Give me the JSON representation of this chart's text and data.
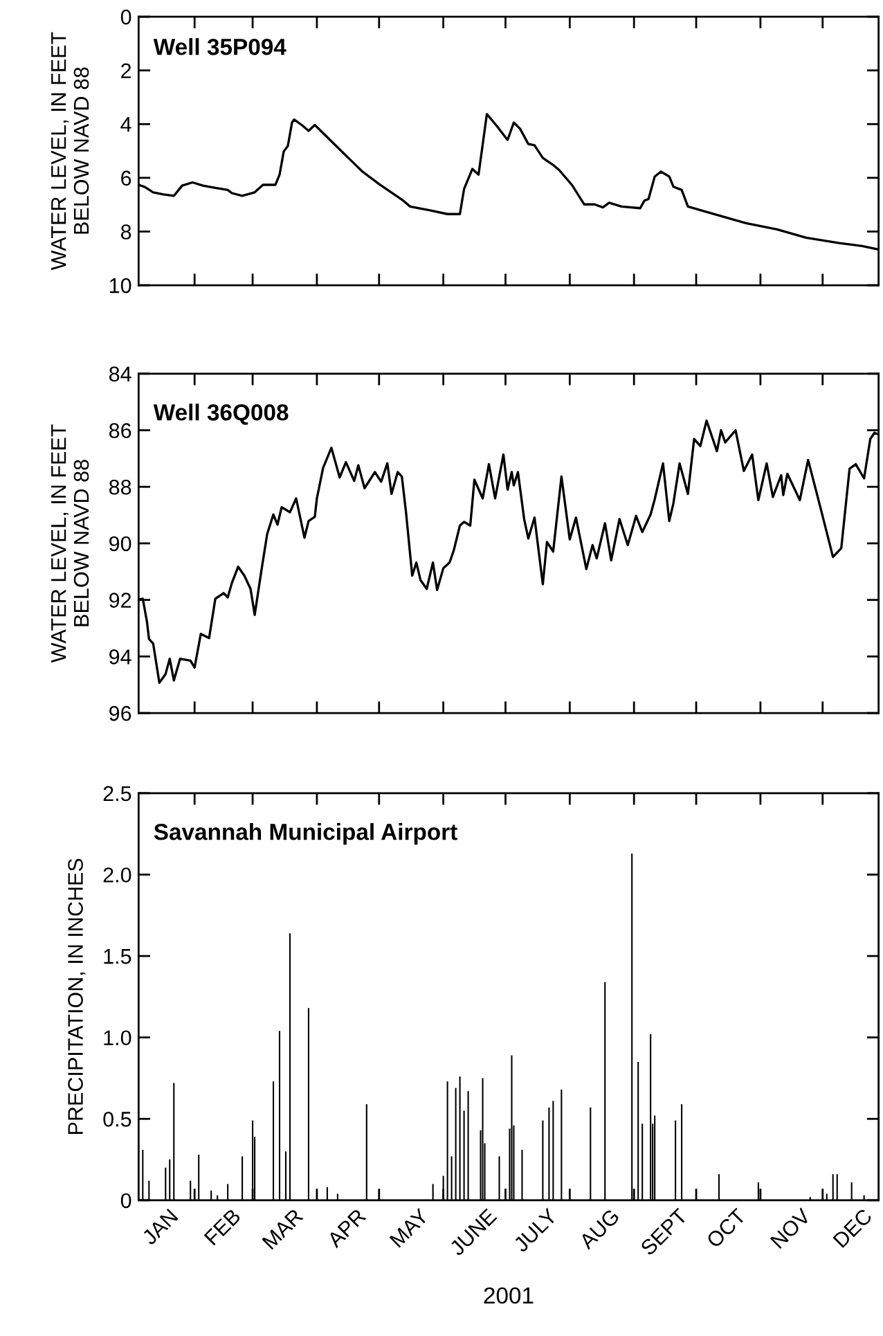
{
  "chart_data": [
    {
      "type": "line",
      "title": "Well 35P094",
      "ylabel": "WATER LEVEL, IN FEET\nBELOW NAVD 88",
      "xlim": [
        "2001-01-05",
        "2001-12-28"
      ],
      "ylim": [
        10,
        0
      ],
      "yticks": [
        0,
        2,
        4,
        6,
        8,
        10
      ],
      "tick_labels": "y",
      "grid": false,
      "xticks": [
        {
          "value": "2001-02-01",
          "label": null
        },
        {
          "value": "2001-03-01",
          "label": null
        },
        {
          "value": "2001-04-01",
          "label": null
        },
        {
          "value": "2001-05-01",
          "label": null
        },
        {
          "value": "2001-06-01",
          "label": null
        },
        {
          "value": "2001-07-01",
          "label": null
        },
        {
          "value": "2001-08-01",
          "label": null
        },
        {
          "value": "2001-09-01",
          "label": null
        },
        {
          "value": "2001-10-01",
          "label": null
        },
        {
          "value": "2001-11-01",
          "label": null
        },
        {
          "value": "2001-12-01",
          "label": null
        }
      ],
      "series": [
        {
          "color": "#000000",
          "x": [
            "2001-01-05",
            "2001-01-08",
            "2001-01-12",
            "2001-01-17",
            "2001-01-22",
            "2001-01-26",
            "2001-01-31",
            "2001-02-05",
            "2001-02-10",
            "2001-02-17",
            "2001-02-19",
            "2001-02-24",
            "2001-03-02",
            "2001-03-06",
            "2001-03-12",
            "2001-03-14",
            "2001-03-16",
            "2001-03-18",
            "2001-03-20",
            "2001-03-21",
            "2001-03-25",
            "2001-03-28",
            "2001-03-31",
            "2001-04-10",
            "2001-04-23",
            "2001-05-01",
            "2001-05-12",
            "2001-05-16",
            "2001-05-26",
            "2001-06-03",
            "2001-06-09",
            "2001-06-11",
            "2001-06-15",
            "2001-06-18",
            "2001-06-22",
            "2001-06-24",
            "2001-06-27",
            "2001-07-02",
            "2001-07-05",
            "2001-07-08",
            "2001-07-12",
            "2001-07-15",
            "2001-07-19",
            "2001-07-24",
            "2001-07-27",
            "2001-08-02",
            "2001-08-08",
            "2001-08-13",
            "2001-08-17",
            "2001-08-20",
            "2001-08-26",
            "2001-09-04",
            "2001-09-06",
            "2001-09-08",
            "2001-09-11",
            "2001-09-14",
            "2001-09-18",
            "2001-09-20",
            "2001-09-24",
            "2001-09-27",
            "2001-10-06",
            "2001-10-25",
            "2001-11-09",
            "2001-11-23",
            "2001-12-09",
            "2001-12-20",
            "2001-12-28"
          ],
          "values": [
            6.26,
            6.34,
            6.54,
            6.62,
            6.67,
            6.29,
            6.17,
            6.29,
            6.36,
            6.45,
            6.57,
            6.67,
            6.54,
            6.26,
            6.26,
            5.88,
            5.02,
            4.81,
            3.94,
            3.83,
            4.05,
            4.25,
            4.03,
            4.79,
            5.77,
            6.23,
            6.81,
            7.07,
            7.22,
            7.35,
            7.35,
            6.42,
            5.67,
            5.88,
            3.63,
            3.81,
            4.09,
            4.59,
            3.94,
            4.17,
            4.74,
            4.79,
            5.26,
            5.52,
            5.72,
            6.26,
            6.99,
            6.99,
            7.1,
            6.93,
            7.07,
            7.13,
            6.85,
            6.79,
            5.95,
            5.77,
            5.95,
            6.33,
            6.45,
            7.07,
            7.27,
            7.69,
            7.92,
            8.23,
            8.43,
            8.54,
            8.67
          ]
        }
      ]
    },
    {
      "type": "line",
      "title": "Well 36Q008",
      "ylabel": "WATER LEVEL, IN FEET\nBELOW NAVD 88",
      "xlim": [
        "2001-01-05",
        "2001-12-28"
      ],
      "ylim": [
        96,
        84
      ],
      "yticks": [
        84,
        86,
        88,
        90,
        92,
        94,
        96
      ],
      "tick_labels": "y",
      "grid": false,
      "xticks": [
        {
          "value": "2001-02-01",
          "label": null
        },
        {
          "value": "2001-03-01",
          "label": null
        },
        {
          "value": "2001-04-01",
          "label": null
        },
        {
          "value": "2001-05-01",
          "label": null
        },
        {
          "value": "2001-06-01",
          "label": null
        },
        {
          "value": "2001-07-01",
          "label": null
        },
        {
          "value": "2001-08-01",
          "label": null
        },
        {
          "value": "2001-09-01",
          "label": null
        },
        {
          "value": "2001-10-01",
          "label": null
        },
        {
          "value": "2001-11-01",
          "label": null
        },
        {
          "value": "2001-12-01",
          "label": null
        }
      ],
      "series": [
        {
          "color": "#000000",
          "x": [
            "2001-01-05",
            "2001-01-07",
            "2001-01-09",
            "2001-01-10",
            "2001-01-12",
            "2001-01-15",
            "2001-01-18",
            "2001-01-20",
            "2001-01-22",
            "2001-01-25",
            "2001-01-30",
            "2001-02-01",
            "2001-02-04",
            "2001-02-08",
            "2001-02-11",
            "2001-02-15",
            "2001-02-17",
            "2001-02-19",
            "2001-02-22",
            "2001-02-25",
            "2001-02-28",
            "2001-03-02",
            "2001-03-05",
            "2001-03-08",
            "2001-03-11",
            "2001-03-13",
            "2001-03-15",
            "2001-03-19",
            "2001-03-22",
            "2001-03-26",
            "2001-03-28",
            "2001-03-31",
            "2001-04-01",
            "2001-04-04",
            "2001-04-08",
            "2001-04-12",
            "2001-04-15",
            "2001-04-19",
            "2001-04-21",
            "2001-04-24",
            "2001-04-29",
            "2001-05-02",
            "2001-05-05",
            "2001-05-07",
            "2001-05-10",
            "2001-05-12",
            "2001-05-14",
            "2001-05-17",
            "2001-05-19",
            "2001-05-21",
            "2001-05-24",
            "2001-05-27",
            "2001-05-29",
            "2001-06-01",
            "2001-06-04",
            "2001-06-06",
            "2001-06-09",
            "2001-06-11",
            "2001-06-14",
            "2001-06-16",
            "2001-06-20",
            "2001-06-23",
            "2001-06-26",
            "2001-06-30",
            "2001-07-02",
            "2001-07-04",
            "2001-07-05",
            "2001-07-07",
            "2001-07-10",
            "2001-07-12",
            "2001-07-15",
            "2001-07-19",
            "2001-07-21",
            "2001-07-24",
            "2001-07-28",
            "2001-08-01",
            "2001-08-04",
            "2001-08-09",
            "2001-08-12",
            "2001-08-14",
            "2001-08-18",
            "2001-08-21",
            "2001-08-25",
            "2001-08-29",
            "2001-09-02",
            "2001-09-05",
            "2001-09-09",
            "2001-09-11",
            "2001-09-15",
            "2001-09-18",
            "2001-09-20",
            "2001-09-23",
            "2001-09-27",
            "2001-09-30",
            "2001-10-03",
            "2001-10-06",
            "2001-10-11",
            "2001-10-13",
            "2001-10-15",
            "2001-10-20",
            "2001-10-24",
            "2001-10-28",
            "2001-10-31",
            "2001-11-04",
            "2001-11-07",
            "2001-11-11",
            "2001-11-12",
            "2001-11-14",
            "2001-11-20",
            "2001-11-24",
            "2001-11-30",
            "2001-12-06",
            "2001-12-10",
            "2001-12-14",
            "2001-12-17",
            "2001-12-21",
            "2001-12-24",
            "2001-12-26",
            "2001-12-28"
          ],
          "values": [
            91.99,
            91.96,
            92.76,
            93.38,
            93.54,
            94.93,
            94.62,
            94.08,
            94.85,
            94.08,
            94.15,
            94.39,
            93.2,
            93.35,
            91.96,
            91.76,
            91.91,
            91.4,
            90.83,
            91.14,
            91.61,
            92.53,
            91.07,
            89.68,
            88.98,
            89.34,
            88.72,
            88.9,
            88.41,
            89.8,
            89.21,
            89.06,
            88.41,
            87.33,
            86.62,
            87.67,
            87.13,
            87.79,
            87.24,
            88.05,
            87.48,
            87.82,
            87.17,
            88.25,
            87.48,
            87.64,
            88.9,
            91.14,
            90.68,
            91.3,
            91.61,
            90.68,
            91.65,
            90.88,
            90.68,
            90.26,
            89.37,
            89.24,
            89.37,
            87.75,
            88.41,
            87.2,
            88.41,
            86.86,
            88.1,
            87.48,
            87.95,
            87.48,
            89.14,
            89.83,
            89.09,
            91.45,
            89.95,
            90.29,
            87.64,
            89.86,
            89.09,
            90.91,
            90.06,
            90.53,
            89.29,
            90.6,
            89.14,
            90.06,
            89.03,
            89.6,
            88.98,
            88.44,
            87.17,
            89.21,
            88.59,
            87.17,
            88.25,
            86.31,
            86.56,
            85.66,
            86.74,
            86.0,
            86.43,
            86.0,
            87.44,
            86.86,
            88.47,
            87.17,
            88.36,
            87.59,
            88.29,
            87.54,
            88.47,
            87.05,
            88.75,
            90.48,
            90.17,
            87.36,
            87.2,
            87.7,
            86.31,
            86.09,
            86.15
          ]
        }
      ]
    },
    {
      "type": "bar",
      "title": "Savannah Municipal Airport",
      "ylabel": "PRECIPITATION, IN INCHES",
      "xlabel": "2001",
      "xlim": [
        "2001-01-05",
        "2001-12-28"
      ],
      "ylim": [
        0,
        2.5
      ],
      "grid": false,
      "yticks": [
        0,
        0.5,
        {
          "value": 1,
          "label": "1.0"
        },
        1.5,
        {
          "value": 2,
          "label": "2.0"
        },
        2.5
      ],
      "xticks": [
        {
          "value": "2001-02-01",
          "label": null
        },
        {
          "value": "2001-03-01",
          "label": null
        },
        {
          "value": "2001-04-01",
          "label": null
        },
        {
          "value": "2001-05-01",
          "label": null
        },
        {
          "value": "2001-06-01",
          "label": null
        },
        {
          "value": "2001-07-01",
          "label": null
        },
        {
          "value": "2001-08-01",
          "label": null
        },
        {
          "value": "2001-09-01",
          "label": null
        },
        {
          "value": "2001-10-01",
          "label": null
        },
        {
          "value": "2001-11-01",
          "label": null
        },
        {
          "value": "2001-12-01",
          "label": null
        },
        {
          "value": "2001-01-16",
          "label": "JAN"
        },
        {
          "value": "2001-02-15",
          "label": "FEB"
        },
        {
          "value": "2001-03-16",
          "label": "MAR"
        },
        {
          "value": "2001-04-16",
          "label": "APR"
        },
        {
          "value": "2001-05-16",
          "label": "MAY"
        },
        {
          "value": "2001-06-16",
          "label": "JUNE"
        },
        {
          "value": "2001-07-16",
          "label": "JULY"
        },
        {
          "value": "2001-08-16",
          "label": "AUG"
        },
        {
          "value": "2001-09-16",
          "label": "SEPT"
        },
        {
          "value": "2001-10-16",
          "label": "OCT"
        },
        {
          "value": "2001-11-16",
          "label": "NOV"
        },
        {
          "value": "2001-12-16",
          "label": "DEC"
        }
      ],
      "series": [
        {
          "color": "#000000",
          "x": [
            "2001-01-07",
            "2001-01-10",
            "2001-01-18",
            "2001-01-20",
            "2001-01-22",
            "2001-01-30",
            "2001-02-03",
            "2001-02-09",
            "2001-02-12",
            "2001-02-17",
            "2001-02-24",
            "2001-03-01",
            "2001-03-02",
            "2001-03-11",
            "2001-03-14",
            "2001-03-17",
            "2001-03-19",
            "2001-03-28",
            "2001-04-06",
            "2001-04-11",
            "2001-04-25",
            "2001-05-27",
            "2001-06-01",
            "2001-06-03",
            "2001-06-05",
            "2001-06-07",
            "2001-06-09",
            "2001-06-11",
            "2001-06-13",
            "2001-06-19",
            "2001-06-20",
            "2001-06-21",
            "2001-06-28",
            "2001-07-03",
            "2001-07-04",
            "2001-07-05",
            "2001-07-09",
            "2001-07-19",
            "2001-07-22",
            "2001-07-24",
            "2001-07-28",
            "2001-08-11",
            "2001-08-18",
            "2001-08-31",
            "2001-09-03",
            "2001-09-05",
            "2001-09-09",
            "2001-09-10",
            "2001-09-11",
            "2001-09-21",
            "2001-09-24",
            "2001-10-12",
            "2001-10-31",
            "2001-11-25",
            "2001-12-03",
            "2001-12-06",
            "2001-12-08",
            "2001-12-15",
            "2001-12-21"
          ],
          "values": [
            0.31,
            0.12,
            0.2,
            0.25,
            0.72,
            0.12,
            0.28,
            0.06,
            0.03,
            0.1,
            0.27,
            0.49,
            0.39,
            0.73,
            1.04,
            0.3,
            1.64,
            1.18,
            0.08,
            0.04,
            0.59,
            0.1,
            0.15,
            0.73,
            0.27,
            0.69,
            0.76,
            0.55,
            0.67,
            0.43,
            0.75,
            0.35,
            0.27,
            0.44,
            0.89,
            0.46,
            0.31,
            0.49,
            0.57,
            0.61,
            0.68,
            0.57,
            1.34,
            2.13,
            0.85,
            0.47,
            1.02,
            0.47,
            0.52,
            0.49,
            0.59,
            0.16,
            0.11,
            0.02,
            0.04,
            0.16,
            0.16,
            0.11,
            0.03
          ]
        }
      ]
    }
  ]
}
